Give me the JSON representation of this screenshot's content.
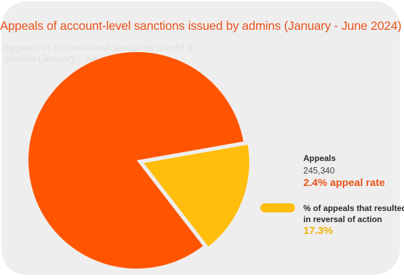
{
  "chart_data": {
    "type": "pie",
    "title": "Appeals of account-level sanctions issued by admins (January - June 2024)",
    "slices": [
      {
        "label": "Appeals",
        "value": 82.7
      },
      {
        "label": "% of appeals that resulted in reversal of action",
        "value": 17.3
      }
    ],
    "colors": {
      "appeals": "#ff5500",
      "reversal": "#ffbd0c",
      "title": "#e8541c"
    },
    "annotations": {
      "appeals_title": "Appeals",
      "appeals_count": "245,340",
      "appeal_rate": "2.4% appeal rate",
      "reversal_title_line1": "% of appeals that resulted",
      "reversal_title_line2": "in reversal of action",
      "reversal_pct": "17.3%"
    },
    "ghost_text": {
      "line1": "Appeals of account-level sanctions issued b",
      "line2": "admins (January - June 2024)"
    }
  }
}
